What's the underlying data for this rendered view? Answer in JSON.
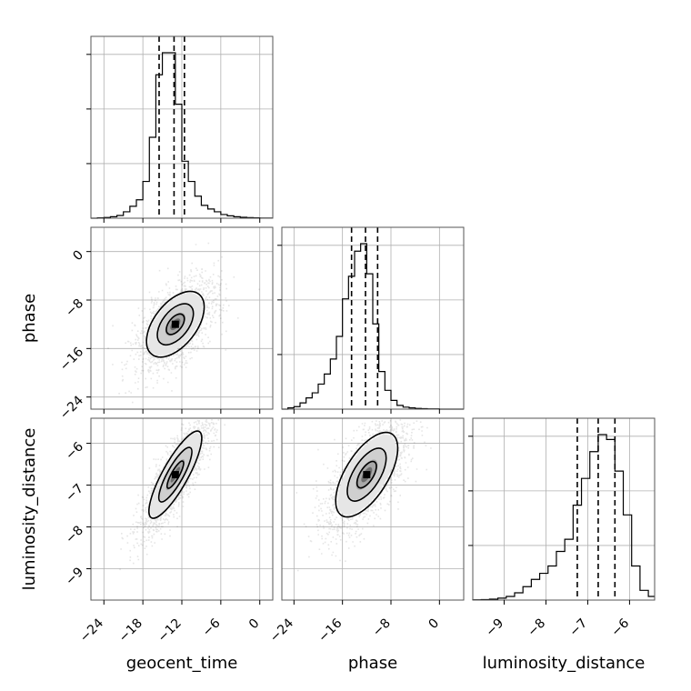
{
  "chart_data": {
    "type": "corner",
    "parameters": [
      {
        "name": "geocent_time",
        "label": "geocent_time",
        "range": [
          -26,
          2
        ],
        "ticks": [
          -24,
          -18,
          -12,
          -6,
          0
        ],
        "tick_labels": [
          "−24",
          "−18",
          "−12",
          "−6",
          "0"
        ],
        "quantiles": [
          -15.5,
          -13.2,
          -11.6
        ],
        "histogram": {
          "bin_edges": [
            -26,
            -25,
            -24,
            -23,
            -22,
            -21,
            -20,
            -19,
            -18,
            -17,
            -16,
            -15,
            -14,
            -13,
            -12,
            -11,
            -10,
            -9,
            -8,
            -7,
            -6,
            -5,
            -4,
            -3,
            -2,
            -1,
            0,
            1,
            2
          ],
          "counts": [
            0,
            0.002,
            0.004,
            0.008,
            0.015,
            0.035,
            0.065,
            0.1,
            0.2,
            0.44,
            0.78,
            0.9,
            0.9,
            0.62,
            0.31,
            0.2,
            0.12,
            0.07,
            0.05,
            0.035,
            0.02,
            0.013,
            0.008,
            0.005,
            0.003,
            0.002,
            0.001,
            0.001
          ]
        }
      },
      {
        "name": "phase",
        "label": "phase",
        "range": [
          -26,
          4
        ],
        "ticks": [
          -24,
          -16,
          -8,
          0
        ],
        "tick_labels": [
          "−24",
          "−16",
          "−8",
          "0"
        ],
        "quantiles": [
          -14.5,
          -12.2,
          -10.2
        ],
        "histogram": {
          "bin_edges": [
            -26,
            -25,
            -24,
            -23,
            -22,
            -21,
            -20,
            -19,
            -18,
            -17,
            -16,
            -15,
            -14,
            -13,
            -12,
            -11,
            -10,
            -9,
            -8,
            -7,
            -6,
            -5,
            -4,
            -3,
            -2,
            -1,
            0,
            1,
            2,
            3,
            4
          ],
          "counts": [
            0,
            0.005,
            0.01,
            0.025,
            0.045,
            0.065,
            0.1,
            0.14,
            0.2,
            0.29,
            0.44,
            0.53,
            0.63,
            0.66,
            0.54,
            0.34,
            0.15,
            0.075,
            0.035,
            0.015,
            0.008,
            0.005,
            0.003,
            0.002,
            0.001,
            0.001,
            0,
            0,
            0,
            0
          ]
        }
      },
      {
        "name": "luminosity_distance",
        "label": "luminosity_distance",
        "range": [
          -9.75,
          -5.4
        ],
        "ticks": [
          -9,
          -8,
          -7,
          -6
        ],
        "tick_labels": [
          "−9",
          "−8",
          "−7",
          "−6"
        ],
        "quantiles": [
          -7.25,
          -6.75,
          -6.35
        ],
        "histogram": {
          "bin_edges": [
            -9.75,
            -9.55,
            -9.35,
            -9.15,
            -8.95,
            -8.75,
            -8.55,
            -8.35,
            -8.15,
            -7.95,
            -7.75,
            -7.55,
            -7.35,
            -7.15,
            -6.95,
            -6.75,
            -6.55,
            -6.35,
            -6.15,
            -5.95,
            -5.75,
            -5.55,
            -5.4
          ],
          "counts": [
            0.001,
            0.002,
            0.004,
            0.008,
            0.015,
            0.03,
            0.055,
            0.085,
            0.11,
            0.14,
            0.2,
            0.25,
            0.39,
            0.5,
            0.61,
            0.68,
            0.66,
            0.53,
            0.35,
            0.14,
            0.04,
            0.015
          ]
        }
      }
    ],
    "joint": [
      {
        "x": "geocent_time",
        "y": "phase",
        "center": [
          -13.0,
          -12.0
        ],
        "sigma": [
          2.6,
          3.2
        ],
        "correlation": 0.55,
        "contour_levels_sigma": [
          0.5,
          1.0,
          1.6
        ]
      },
      {
        "x": "geocent_time",
        "y": "luminosity_distance",
        "center": [
          -13.0,
          -6.75
        ],
        "sigma": [
          2.4,
          0.62
        ],
        "correlation": 0.85,
        "contour_levels_sigma": [
          0.5,
          1.0,
          1.6
        ]
      },
      {
        "x": "phase",
        "y": "luminosity_distance",
        "center": [
          -12.0,
          -6.75
        ],
        "sigma": [
          3.0,
          0.6
        ],
        "correlation": 0.65,
        "contour_levels_sigma": [
          0.5,
          1.0,
          1.6
        ]
      }
    ]
  }
}
